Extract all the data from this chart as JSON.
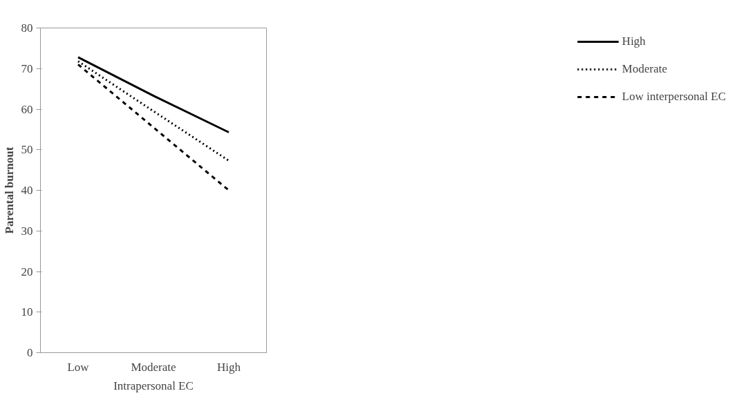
{
  "chart_data": {
    "type": "line",
    "xlabel": "Intrapersonal EC",
    "ylabel": "Parental burnout",
    "categories": [
      "Low",
      "Moderate",
      "High"
    ],
    "ylim": [
      0,
      80
    ],
    "yticks": [
      0,
      10,
      20,
      30,
      40,
      50,
      60,
      70,
      80
    ],
    "grid": false,
    "legend": "right",
    "marker": "none",
    "series": [
      {
        "name": "High",
        "color": "#000000",
        "line_style": "solid",
        "values": [
          72.8,
          63.3,
          54.3
        ]
      },
      {
        "name": "Moderate",
        "color": "#000000",
        "line_style": "dotted",
        "values": [
          71.8,
          59.5,
          47.3
        ]
      },
      {
        "name": "Low interpersonal EC",
        "color": "#000000",
        "line_style": "dashed",
        "values": [
          71,
          55.5,
          40
        ]
      }
    ]
  }
}
